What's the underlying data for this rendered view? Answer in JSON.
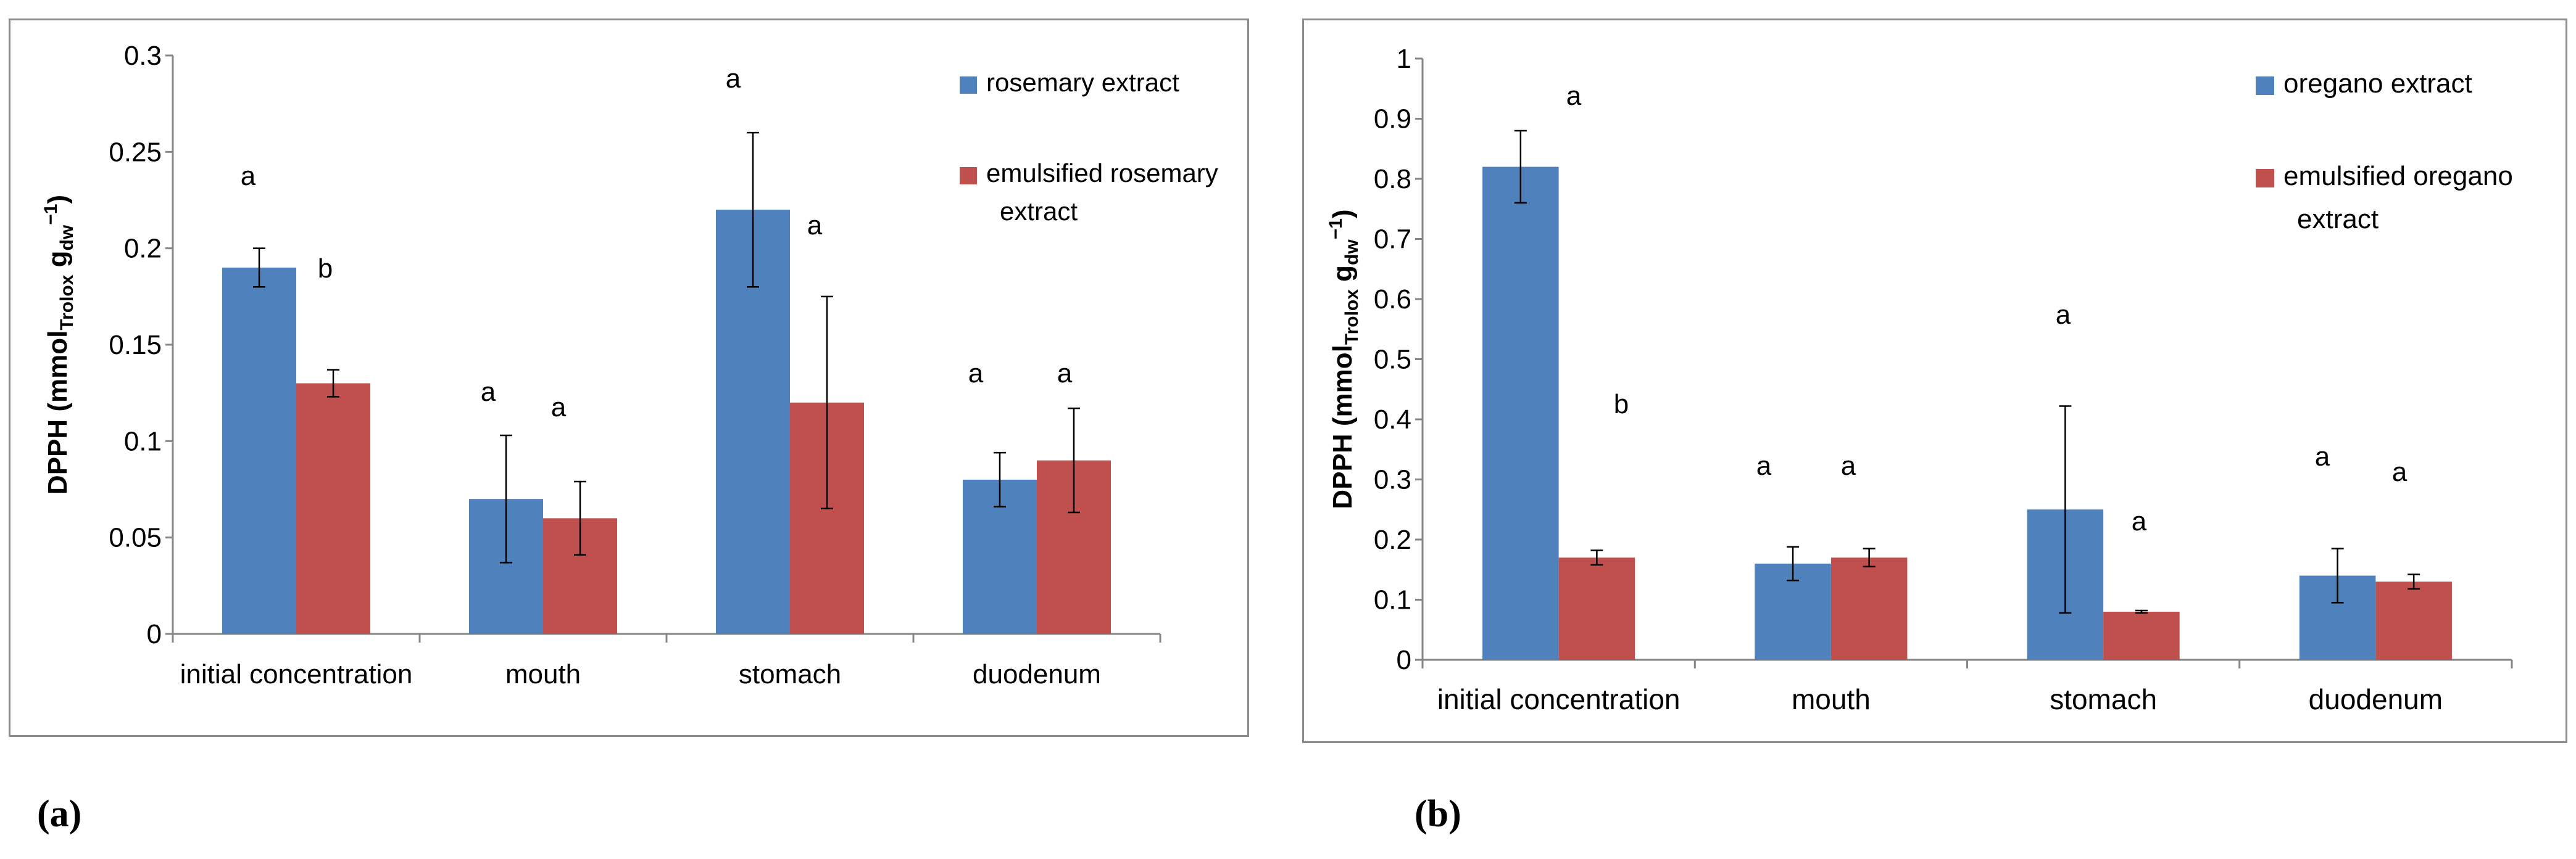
{
  "chart_data": [
    {
      "panel": "(a)",
      "type": "bar",
      "ylabel_main": "DPPH",
      "ylabel_unit": "(mmol",
      "ylabel_sub1": "Trolox",
      "ylabel_unit2": "g",
      "ylabel_sub2": "dw",
      "ylabel_sup": "−1",
      "ylabel_close": ")",
      "ylim": [
        0,
        0.3
      ],
      "yticks": [
        "0",
        "0.05",
        "0.1",
        "0.15",
        "0.2",
        "0.25",
        "0.3"
      ],
      "categories": [
        "initial concentration",
        "mouth",
        "stomach",
        "duodenum"
      ],
      "series": [
        {
          "name": "rosemary extract",
          "legend_lines": [
            "rosemary extract"
          ],
          "color": "#4f81bd",
          "values": [
            0.19,
            0.07,
            0.22,
            0.08
          ],
          "errors": [
            0.01,
            0.033,
            0.04,
            0.014
          ],
          "letters": [
            "a",
            "a",
            "a",
            "a"
          ]
        },
        {
          "name": "emulsified rosemary extract",
          "legend_lines": [
            "emulsified rosemary",
            "extract"
          ],
          "color": "#c0504d",
          "values": [
            0.13,
            0.06,
            0.12,
            0.09
          ],
          "errors": [
            0.007,
            0.019,
            0.055,
            0.027
          ],
          "letters": [
            "b",
            "a",
            "a",
            "a"
          ]
        }
      ]
    },
    {
      "panel": "(b)",
      "type": "bar",
      "ylabel_main": "DPPH",
      "ylabel_unit": "(mmol",
      "ylabel_sub1": "Trolox",
      "ylabel_unit2": "g",
      "ylabel_sub2": "dw",
      "ylabel_sup": "−1",
      "ylabel_close": ")",
      "ylim": [
        0,
        1
      ],
      "yticks": [
        "0",
        "0.1",
        "0.2",
        "0.3",
        "0.4",
        "0.5",
        "0.6",
        "0.7",
        "0.8",
        "0.9",
        "1"
      ],
      "categories": [
        "initial concentration",
        "mouth",
        "stomach",
        "duodenum"
      ],
      "series": [
        {
          "name": "oregano extract",
          "legend_lines": [
            "oregano extract"
          ],
          "color": "#4f81bd",
          "values": [
            0.82,
            0.16,
            0.25,
            0.14
          ],
          "errors": [
            0.06,
            0.028,
            0.172,
            0.045
          ],
          "letters": [
            "a",
            "a",
            "a",
            "a"
          ]
        },
        {
          "name": "emulsified oregano extract",
          "legend_lines": [
            "emulsified oregano",
            "extract"
          ],
          "color": "#c0504d",
          "values": [
            0.17,
            0.17,
            0.08,
            0.13
          ],
          "errors": [
            0.012,
            0.015,
            0.002,
            0.012
          ],
          "letters": [
            "b",
            "a",
            "a",
            "a"
          ]
        }
      ]
    }
  ]
}
